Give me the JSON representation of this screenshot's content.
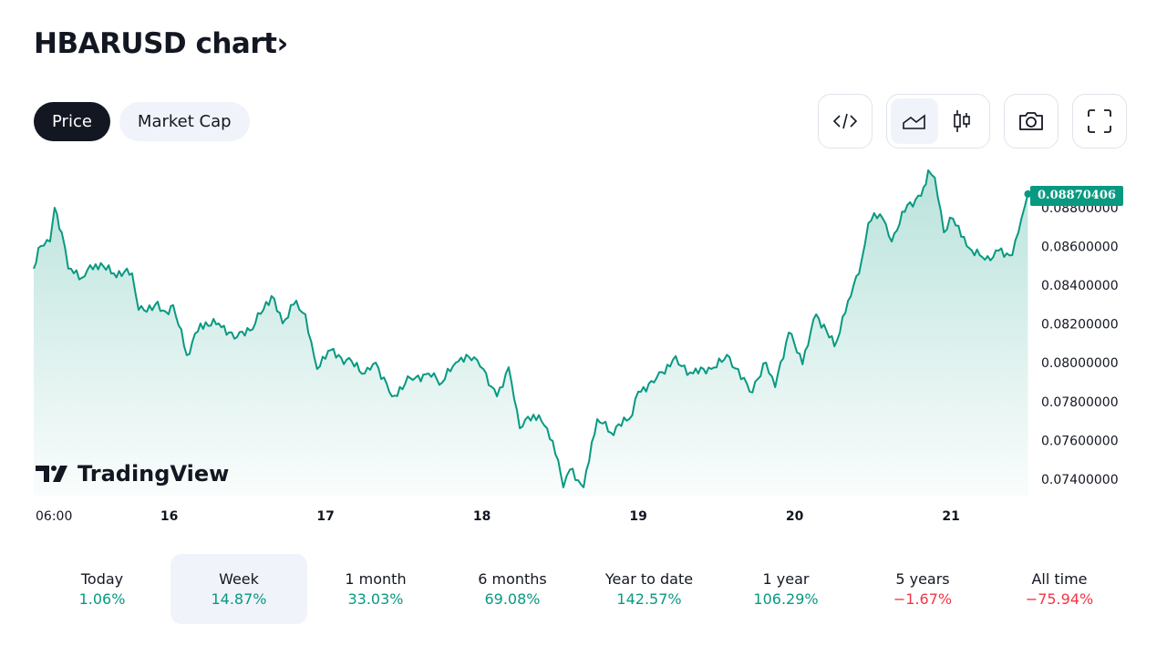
{
  "header": {
    "title": "HBARUSD chart",
    "chevron": "›"
  },
  "tabs": [
    {
      "label": "Price",
      "active": true
    },
    {
      "label": "Market Cap",
      "active": false
    }
  ],
  "toolbar": {
    "icons": [
      "code-embed-icon",
      "area-chart-icon",
      "candlestick-icon",
      "camera-icon",
      "fullscreen-icon"
    ],
    "selected": "area-chart-icon"
  },
  "logo": {
    "text": "TradingView"
  },
  "colors": {
    "line": "#089981",
    "negative": "#f23645",
    "selected_bg": "#f0f3fa"
  },
  "chart_data": {
    "type": "area",
    "title": "HBARUSD",
    "current_price_label": "0.08870406",
    "ylim": [
      0.0733,
      0.09
    ],
    "y_ticks": [
      "0.07400000",
      "0.07600000",
      "0.07800000",
      "0.08000000",
      "0.08200000",
      "0.08400000",
      "0.08600000",
      "0.08800000"
    ],
    "y_tick_values": [
      0.074,
      0.076,
      0.078,
      0.08,
      0.082,
      0.084,
      0.086,
      0.088
    ],
    "x_ticks": [
      {
        "label": "06:00",
        "hour": 0
      },
      {
        "label": "16",
        "hour": 18
      },
      {
        "label": "17",
        "hour": 42
      },
      {
        "label": "18",
        "hour": 66
      },
      {
        "label": "19",
        "hour": 90
      },
      {
        "label": "20",
        "hour": 114
      },
      {
        "label": "21",
        "hour": 138
      }
    ],
    "x_unit": "hours since 15th 06:00",
    "points": [
      [
        -2.8,
        0.08485
      ],
      [
        -1.7,
        0.08602
      ],
      [
        -0.3,
        0.08625
      ],
      [
        0.4,
        0.08799
      ],
      [
        1.5,
        0.08672
      ],
      [
        2.5,
        0.08485
      ],
      [
        4.6,
        0.08438
      ],
      [
        6.7,
        0.08508
      ],
      [
        9.5,
        0.08461
      ],
      [
        12.3,
        0.08461
      ],
      [
        13.3,
        0.08273
      ],
      [
        15.8,
        0.08297
      ],
      [
        17.9,
        0.0825
      ],
      [
        18.6,
        0.08297
      ],
      [
        20.7,
        0.08039
      ],
      [
        22.8,
        0.08203
      ],
      [
        25.6,
        0.08203
      ],
      [
        28.4,
        0.08132
      ],
      [
        31.2,
        0.08203
      ],
      [
        33.7,
        0.08344
      ],
      [
        35.4,
        0.08203
      ],
      [
        37.5,
        0.0832
      ],
      [
        38.9,
        0.0825
      ],
      [
        40.7,
        0.07968
      ],
      [
        42.4,
        0.08062
      ],
      [
        45.2,
        0.08015
      ],
      [
        48.0,
        0.07945
      ],
      [
        49.7,
        0.08001
      ],
      [
        52.2,
        0.07827
      ],
      [
        55.0,
        0.07921
      ],
      [
        57.8,
        0.07945
      ],
      [
        59.9,
        0.07898
      ],
      [
        62.0,
        0.08001
      ],
      [
        64.8,
        0.08029
      ],
      [
        66.2,
        0.07968
      ],
      [
        68.3,
        0.07827
      ],
      [
        70.1,
        0.07977
      ],
      [
        71.8,
        0.07663
      ],
      [
        73.9,
        0.07733
      ],
      [
        76.0,
        0.07663
      ],
      [
        77.7,
        0.07499
      ],
      [
        78.5,
        0.07358
      ],
      [
        79.5,
        0.0745
      ],
      [
        81.6,
        0.07358
      ],
      [
        83.7,
        0.0771
      ],
      [
        85.8,
        0.0764
      ],
      [
        88.6,
        0.0771
      ],
      [
        90.0,
        0.07851
      ],
      [
        92.8,
        0.07921
      ],
      [
        95.3,
        0.08015
      ],
      [
        98.4,
        0.07945
      ],
      [
        101.2,
        0.07968
      ],
      [
        104.0,
        0.08029
      ],
      [
        107.1,
        0.07851
      ],
      [
        109.6,
        0.08001
      ],
      [
        111.0,
        0.07874
      ],
      [
        113.1,
        0.08156
      ],
      [
        115.2,
        0.07992
      ],
      [
        117.3,
        0.0825
      ],
      [
        120.1,
        0.08085
      ],
      [
        122.2,
        0.0832
      ],
      [
        124.3,
        0.08531
      ],
      [
        125.3,
        0.08719
      ],
      [
        127.1,
        0.08766
      ],
      [
        128.9,
        0.08625
      ],
      [
        131.3,
        0.08813
      ],
      [
        133.4,
        0.0886
      ],
      [
        134.5,
        0.08992
      ],
      [
        135.5,
        0.08954
      ],
      [
        136.9,
        0.08672
      ],
      [
        138.3,
        0.08743
      ],
      [
        140.4,
        0.08602
      ],
      [
        143.2,
        0.08531
      ],
      [
        145.3,
        0.08578
      ],
      [
        147.4,
        0.08555
      ],
      [
        148.8,
        0.08743
      ],
      [
        149.8,
        0.0887
      ]
    ]
  },
  "periods": [
    {
      "label": "Today",
      "value": "1.06%",
      "negative": false
    },
    {
      "label": "Week",
      "value": "14.87%",
      "negative": false,
      "selected": true
    },
    {
      "label": "1 month",
      "value": "33.03%",
      "negative": false
    },
    {
      "label": "6 months",
      "value": "69.08%",
      "negative": false
    },
    {
      "label": "Year to date",
      "value": "142.57%",
      "negative": false
    },
    {
      "label": "1 year",
      "value": "106.29%",
      "negative": false
    },
    {
      "label": "5 years",
      "value": "−1.67%",
      "negative": true
    },
    {
      "label": "All time",
      "value": "−75.94%",
      "negative": true
    }
  ]
}
